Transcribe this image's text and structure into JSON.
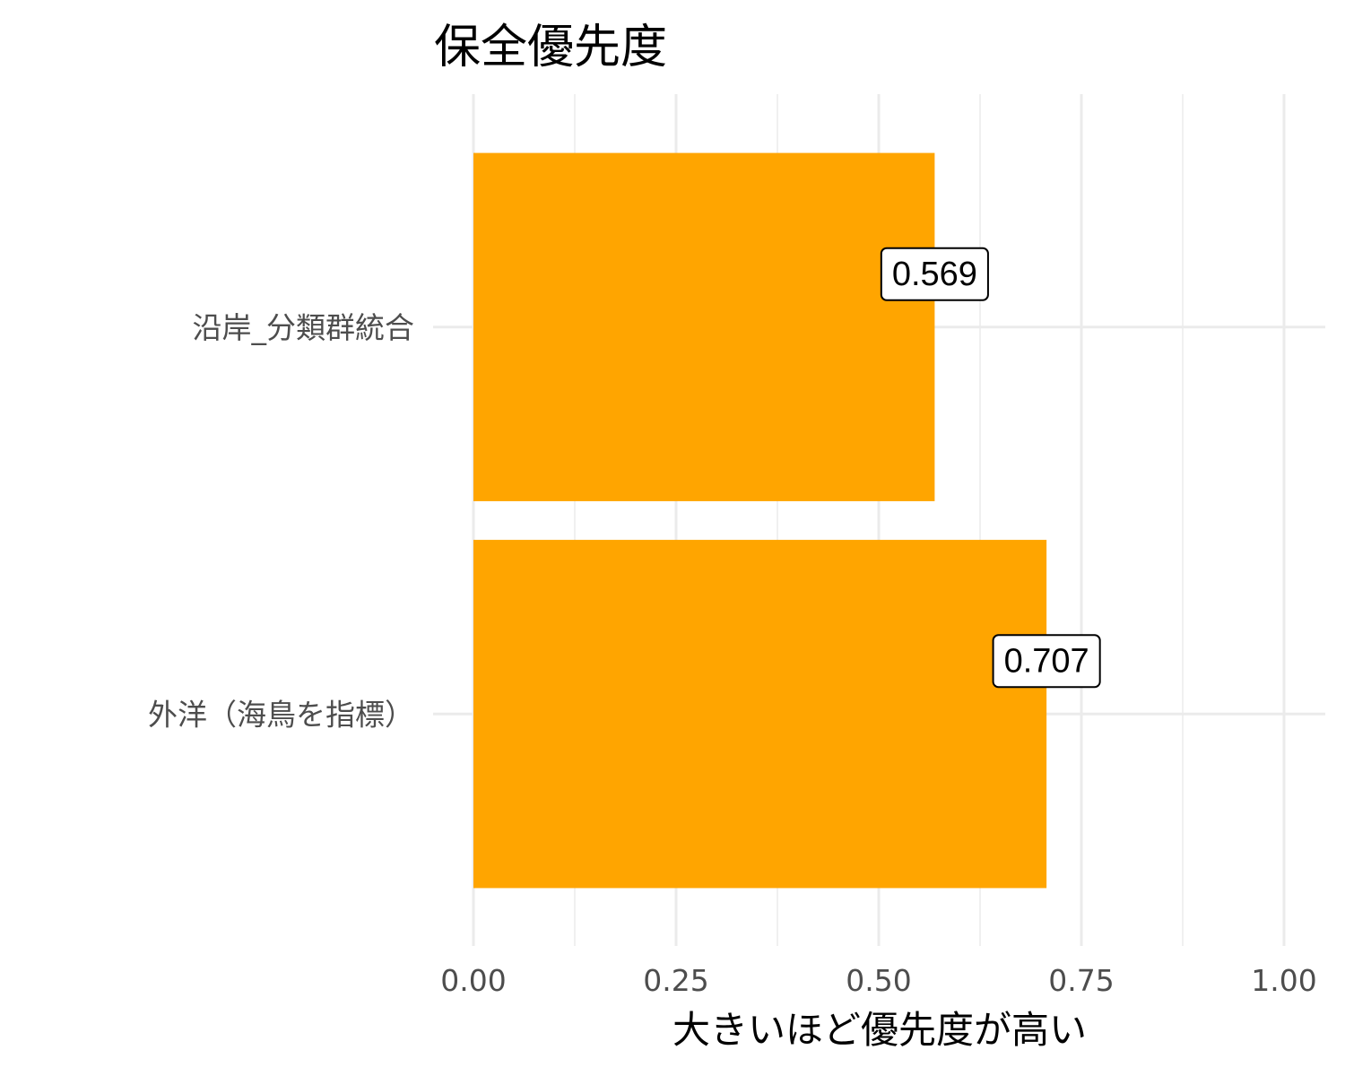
{
  "chart_data": {
    "type": "bar",
    "orientation": "horizontal",
    "title": "保全優先度",
    "xlabel": "大きいほど優先度が高い",
    "ylabel": "",
    "categories": [
      "沿岸_分類群統合",
      "外洋（海鳥を指標）"
    ],
    "values": [
      0.569,
      0.707
    ],
    "data_labels": [
      "0.569",
      "0.707"
    ],
    "xlim": [
      0,
      1.05
    ],
    "x_ticks": [
      0,
      0.25,
      0.5,
      0.75,
      1.0
    ],
    "x_tick_labels": [
      "0.00",
      "0.25",
      "0.50",
      "0.75",
      "1.00"
    ],
    "grid": true,
    "legend": "none",
    "colors": {
      "bar": "#FFA500",
      "grid": "#EBEBEB",
      "tick_text": "#4D4D4D"
    }
  }
}
